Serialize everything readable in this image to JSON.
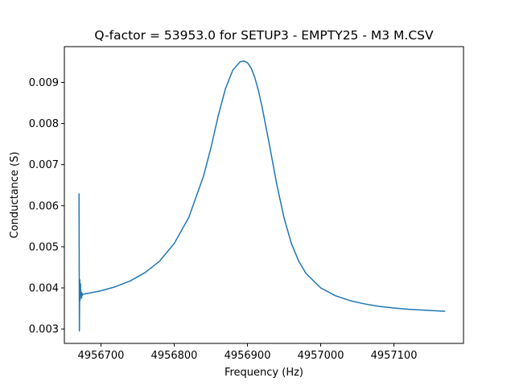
{
  "chart_data": {
    "type": "line",
    "title": "Q-factor = 53953.0 for SETUP3 - EMPTY25 - M3 M.CSV",
    "xlabel": "Frequency (Hz)",
    "ylabel": "Conductance (S)",
    "xlim": [
      4956650,
      4957195
    ],
    "ylim": [
      0.00265,
      0.00987
    ],
    "x_ticks": [
      4956700,
      4956800,
      4956900,
      4957000,
      4957100
    ],
    "y_ticks": [
      0.003,
      0.004,
      0.005,
      0.006,
      0.007,
      0.008,
      0.009
    ],
    "x_tick_labels": [
      "4956700",
      "4956800",
      "4956900",
      "4957000",
      "4957100"
    ],
    "y_tick_labels": [
      "0.003",
      "0.004",
      "0.005",
      "0.006",
      "0.007",
      "0.008",
      "0.009"
    ],
    "grid": false,
    "line_color": "#1f77b4",
    "series": [
      {
        "x": [
          4956670.0,
          4956670.5,
          4956671.0,
          4956671.5,
          4956672.0,
          4956672.5,
          4956673.0,
          4956673.5,
          4956674.0,
          4956674.5,
          4956675.0,
          4956680,
          4956700,
          4956720,
          4956740,
          4956760,
          4956780,
          4956800,
          4956820,
          4956840,
          4956850,
          4956860,
          4956870,
          4956880,
          4956890,
          4956895,
          4956900,
          4956905,
          4956910,
          4956915,
          4956920,
          4956930,
          4956940,
          4956950,
          4956960,
          4956970,
          4956980,
          4957000,
          4957020,
          4957040,
          4957060,
          4957080,
          4957100,
          4957120,
          4957140,
          4957160,
          4957170
        ],
        "y": [
          0.0063,
          0.00295,
          0.0042,
          0.0037,
          0.0041,
          0.0038,
          0.0039,
          0.00375,
          0.00388,
          0.00382,
          0.00384,
          0.00386,
          0.00393,
          0.00403,
          0.00417,
          0.00437,
          0.00465,
          0.00508,
          0.00572,
          0.00672,
          0.0074,
          0.00818,
          0.00885,
          0.0093,
          0.0095,
          0.00952,
          0.00948,
          0.00935,
          0.00912,
          0.0088,
          0.0084,
          0.00748,
          0.00652,
          0.0057,
          0.00508,
          0.00465,
          0.00435,
          0.004,
          0.00381,
          0.00369,
          0.00361,
          0.00355,
          0.00351,
          0.00348,
          0.00346,
          0.00344,
          0.00343
        ]
      }
    ]
  }
}
